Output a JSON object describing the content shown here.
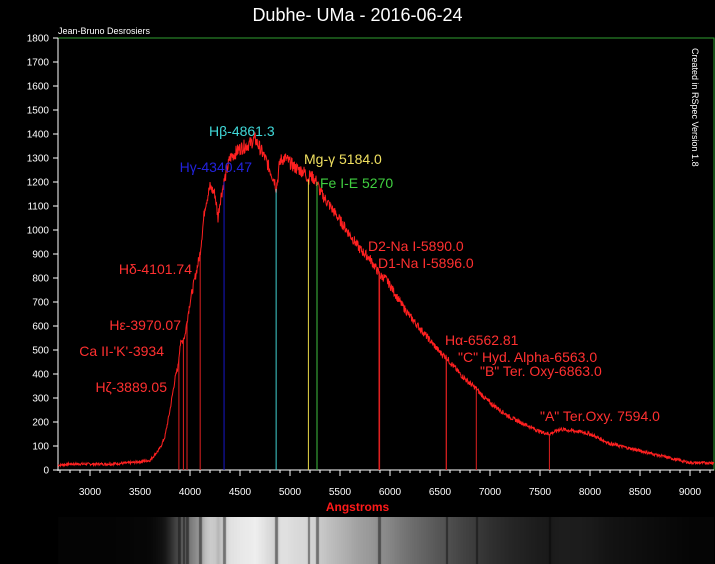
{
  "chart_data": {
    "type": "line",
    "title": "Dubhe- UMa - 2016-06-24",
    "author": "Jean-Bruno Desrosiers",
    "side_note": "Created in RSpec Version 1.8",
    "xlabel": "Angstroms",
    "ylabel": "",
    "xlim": [
      2680,
      9240
    ],
    "ylim": [
      0,
      1800
    ],
    "xticks": [
      3000,
      3500,
      4000,
      4500,
      5000,
      5500,
      6000,
      6500,
      7000,
      7500,
      8000,
      8500,
      9000
    ],
    "yticks": [
      0,
      100,
      200,
      300,
      400,
      500,
      600,
      700,
      800,
      900,
      1000,
      1100,
      1200,
      1300,
      1400,
      1500,
      1600,
      1700,
      1800
    ],
    "grid": false,
    "colors": {
      "background": "#000000",
      "plot_border": "#2f9e2f",
      "spectrum": "#ff2020",
      "red_line": "#e02020",
      "blue_line": "#1515c8",
      "cyan_line": "#40d0d0",
      "yellow_line": "#e8d848",
      "green_line": "#40c040"
    },
    "series": [
      {
        "x": [
          2680,
          2800,
          3000,
          3200,
          3400,
          3600,
          3700,
          3750,
          3800,
          3850,
          3880,
          3900,
          3950,
          3970,
          4000,
          4050,
          4100,
          4150,
          4200,
          4250,
          4280,
          4300,
          4340,
          4400,
          4450,
          4500,
          4600,
          4650,
          4700,
          4750,
          4800,
          4850,
          4861,
          4880,
          4900,
          4950,
          5000,
          5050,
          5100,
          5150,
          5184,
          5200,
          5270,
          5300,
          5400,
          5500,
          5600,
          5700,
          5800,
          5890,
          5896,
          5950,
          6000,
          6100,
          6200,
          6300,
          6400,
          6500,
          6563,
          6600,
          6700,
          6800,
          6863,
          6900,
          7000,
          7100,
          7200,
          7300,
          7400,
          7500,
          7594,
          7650,
          7700,
          7800,
          7900,
          8000,
          8100,
          8200,
          8300,
          8400,
          8500,
          8600,
          8700,
          8800,
          8900,
          9000,
          9100,
          9240
        ],
        "values": [
          20,
          25,
          25,
          25,
          30,
          40,
          90,
          140,
          250,
          380,
          430,
          520,
          560,
          620,
          700,
          800,
          900,
          1100,
          1180,
          1150,
          1050,
          1120,
          1200,
          1300,
          1320,
          1340,
          1360,
          1380,
          1340,
          1300,
          1250,
          1200,
          1170,
          1220,
          1290,
          1300,
          1280,
          1260,
          1250,
          1240,
          1210,
          1230,
          1200,
          1160,
          1100,
          1040,
          980,
          920,
          880,
          820,
          810,
          800,
          770,
          700,
          640,
          590,
          540,
          490,
          470,
          450,
          400,
          360,
          340,
          320,
          280,
          250,
          220,
          200,
          180,
          160,
          150,
          160,
          170,
          165,
          160,
          150,
          130,
          110,
          100,
          90,
          80,
          70,
          60,
          50,
          40,
          30,
          30,
          30
        ]
      }
    ],
    "lines": [
      {
        "label": "Hζ-3889.05",
        "x": 3889.05,
        "color": "red"
      },
      {
        "label": "Ca II-'K'-3934",
        "x": 3934,
        "color": "red"
      },
      {
        "label": "Hε-3970.07",
        "x": 3970.07,
        "color": "red"
      },
      {
        "label": "Hδ-4101.74",
        "x": 4101.74,
        "color": "red"
      },
      {
        "label": "Hγ-4340.47",
        "x": 4340.47,
        "color": "blue"
      },
      {
        "label": "Hβ-4861.3",
        "x": 4861.3,
        "color": "cyan"
      },
      {
        "label": "Mg-γ 5184.0",
        "x": 5184.0,
        "color": "yellow"
      },
      {
        "label": "Fe I-E 5270",
        "x": 5270,
        "color": "green"
      },
      {
        "label": "D2-Na I-5890.0",
        "x": 5890.0,
        "color": "red"
      },
      {
        "label": "D1-Na I-5896.0",
        "x": 5896.0,
        "color": "red"
      },
      {
        "label": "Hα-6562.81",
        "x": 6562.81,
        "color": "red"
      },
      {
        "label": "\"C\" Hyd. Alpha-6563.0",
        "x": 6563.0,
        "color": "red"
      },
      {
        "label": "\"B\" Ter. Oxy-6863.0",
        "x": 6863.0,
        "color": "red"
      },
      {
        "label": "\"A\" Ter.Oxy. 7594.0",
        "x": 7594.0,
        "color": "red"
      }
    ]
  }
}
